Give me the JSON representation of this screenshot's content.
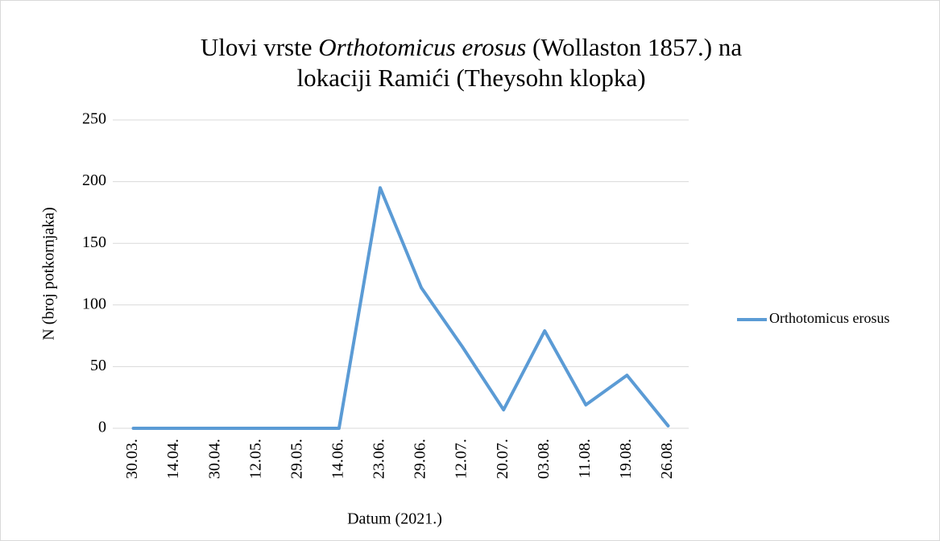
{
  "chart_data": {
    "type": "line",
    "title": [
      "Ulovi vrste",
      "Orthotomicus erosus",
      "(Wollaston 1857.) na",
      "lokaciji Ramići (Theysohn klopka)"
    ],
    "x_label": "Datum (2021.)",
    "y_label": "N (broj potkornjaka)",
    "categories": [
      "30.03.",
      "14.04.",
      "30.04.",
      "12.05.",
      "29.05.",
      "14.06.",
      "23.06.",
      "29.06.",
      "12.07.",
      "20.07.",
      "03.08.",
      "11.08.",
      "19.08.",
      "26.08."
    ],
    "series": [
      {
        "name": "Orthotomicus erosus",
        "color": "#5b9bd5",
        "values": [
          0,
          0,
          0,
          0,
          0,
          0,
          195,
          114,
          66,
          15,
          79,
          19,
          43,
          2
        ]
      }
    ],
    "ylim": [
      0,
      250
    ],
    "yticks": [
      0,
      50,
      100,
      150,
      200,
      250
    ],
    "grid": true,
    "legend": "right"
  }
}
